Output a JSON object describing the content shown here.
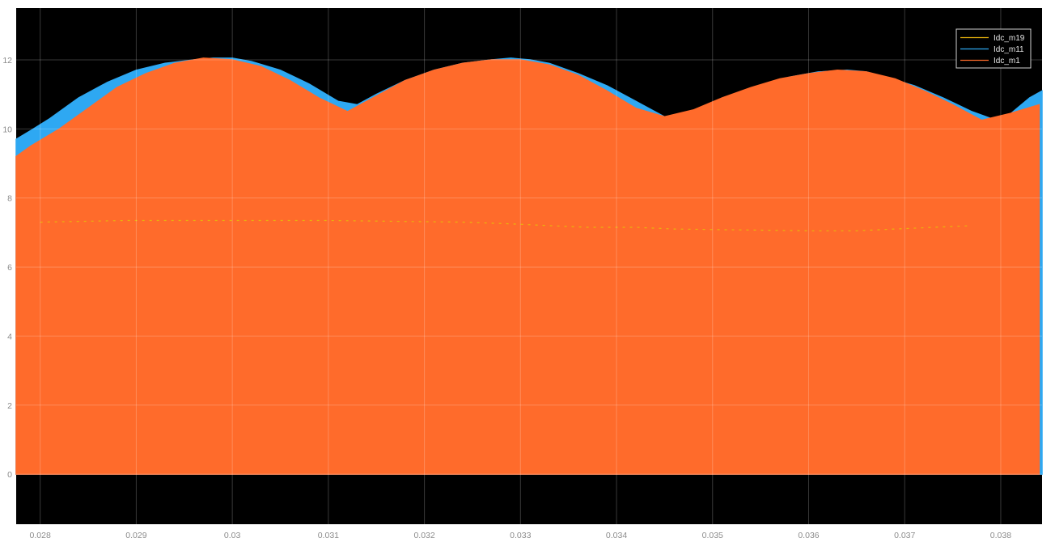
{
  "chart_data": {
    "type": "line",
    "title": "",
    "xlabel": "",
    "ylabel": "",
    "xlim": [
      0.02775,
      0.03843
    ],
    "ylim": [
      -1.45,
      13.5
    ],
    "xticks": [
      0.028,
      0.029,
      0.03,
      0.031,
      0.032,
      0.033,
      0.034,
      0.035,
      0.036,
      0.037,
      0.038
    ],
    "xtick_labels": [
      "0.028",
      "0.029",
      "0.03",
      "0.031",
      "0.032",
      "0.033",
      "0.034",
      "0.035",
      "0.036",
      "0.037",
      "0.038"
    ],
    "yticks": [
      0,
      2,
      4,
      6,
      8,
      10,
      12
    ],
    "ytick_labels": [
      "0",
      "2",
      "4",
      "6",
      "8",
      "10",
      "12"
    ],
    "grid": true,
    "legend_position": "top-right",
    "background": "#000000",
    "series": [
      {
        "name": "Idc_m19",
        "color": "#e8b40c",
        "x": [
          0.028,
          0.0289,
          0.0294,
          0.0298,
          0.0301,
          0.0305,
          0.031,
          0.0324,
          0.0329,
          0.0333,
          0.0337,
          0.0342,
          0.0346,
          0.036,
          0.0365,
          0.0369,
          0.0373,
          0.0377
        ],
        "y": [
          7.3,
          7.35,
          7.35,
          7.35,
          7.35,
          7.35,
          7.35,
          7.3,
          7.25,
          7.2,
          7.15,
          7.15,
          7.1,
          7.05,
          7.05,
          7.1,
          7.15,
          7.2
        ]
      },
      {
        "name": "Idc_m11",
        "color": "#2ea8f2",
        "x": [
          0.02775,
          0.0279,
          0.0281,
          0.0284,
          0.0287,
          0.029,
          0.0293,
          0.0296,
          0.0298,
          0.03,
          0.0302,
          0.0305,
          0.0308,
          0.0311,
          0.0313,
          0.0315,
          0.0318,
          0.0321,
          0.0324,
          0.0327,
          0.0329,
          0.0331,
          0.0333,
          0.0336,
          0.0339,
          0.0342,
          0.0345,
          0.0349,
          0.0352,
          0.0355,
          0.0358,
          0.0361,
          0.0364,
          0.0366,
          0.0368,
          0.0371,
          0.0374,
          0.0377,
          0.038,
          0.0383,
          0.03843
        ],
        "y": [
          9.7,
          9.95,
          10.3,
          10.9,
          11.35,
          11.7,
          11.9,
          12.0,
          12.05,
          12.05,
          11.95,
          11.7,
          11.3,
          10.8,
          10.7,
          11.0,
          11.4,
          11.7,
          11.9,
          12.0,
          12.05,
          12.0,
          11.9,
          11.6,
          11.25,
          10.8,
          10.35,
          10.5,
          10.9,
          11.25,
          11.5,
          11.65,
          11.7,
          11.65,
          11.5,
          11.25,
          10.9,
          10.5,
          10.2,
          10.9,
          11.1
        ]
      },
      {
        "name": "Idc_m1",
        "color": "#ff6b2b",
        "x": [
          0.02775,
          0.0279,
          0.0282,
          0.0285,
          0.0288,
          0.0291,
          0.0294,
          0.0297,
          0.03,
          0.0303,
          0.0306,
          0.0309,
          0.0312,
          0.0315,
          0.0318,
          0.0321,
          0.0324,
          0.0327,
          0.033,
          0.0333,
          0.0336,
          0.0339,
          0.0342,
          0.0345,
          0.0348,
          0.0351,
          0.0354,
          0.0357,
          0.036,
          0.0363,
          0.0366,
          0.0369,
          0.0372,
          0.0375,
          0.0378,
          0.0381,
          0.0384
        ],
        "y": [
          9.2,
          9.5,
          10.0,
          10.6,
          11.2,
          11.6,
          11.9,
          12.05,
          12.0,
          11.8,
          11.4,
          10.9,
          10.5,
          10.95,
          11.4,
          11.7,
          11.9,
          12.0,
          12.0,
          11.85,
          11.55,
          11.1,
          10.6,
          10.35,
          10.55,
          10.9,
          11.2,
          11.45,
          11.6,
          11.7,
          11.65,
          11.45,
          11.1,
          10.7,
          10.25,
          10.45,
          10.7
        ]
      }
    ]
  }
}
